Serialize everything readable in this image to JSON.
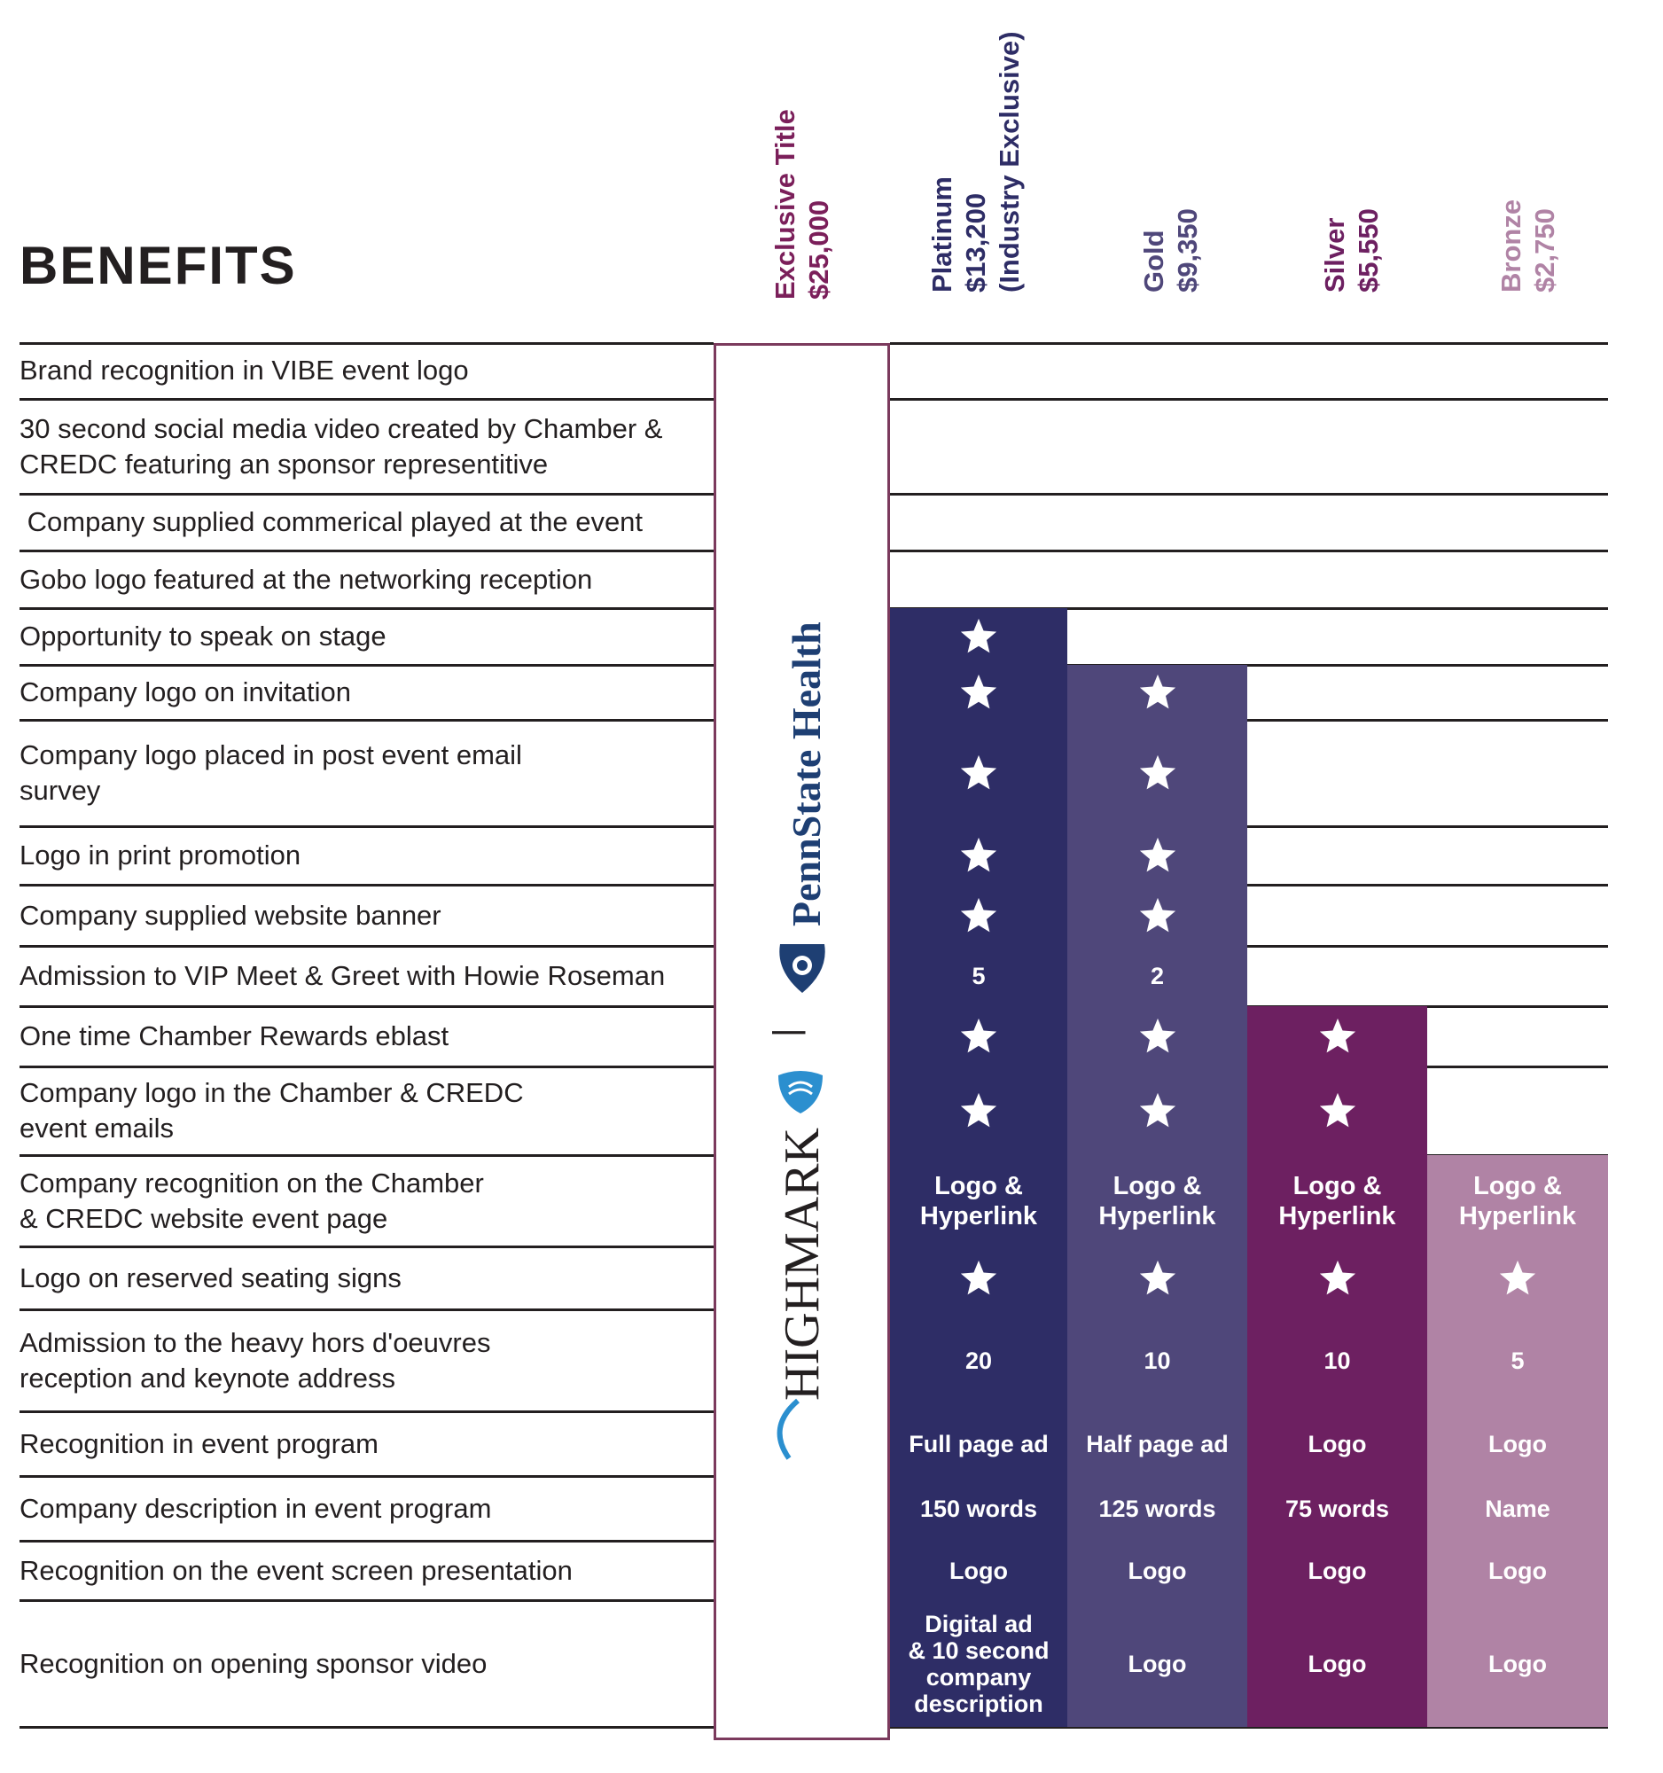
{
  "title": "BENEFITS",
  "tiers": [
    {
      "line1": "Exclusive Title",
      "line2": "$25,000",
      "line3": "",
      "color": "#7b1f5a"
    },
    {
      "line1": "Platinum",
      "line2": "$13,200",
      "line3": "(Industry Exclusive)",
      "color": "#2e2d66"
    },
    {
      "line1": "Gold",
      "line2": "$9,350",
      "line3": "",
      "color": "#4f477a"
    },
    {
      "line1": "Silver",
      "line2": "$5,550",
      "line3": "",
      "color": "#6d2061"
    },
    {
      "line1": "Bronze",
      "line2": "$2,750",
      "line3": "",
      "color": "#b083a5"
    }
  ],
  "benefits": [
    {
      "label": [
        "Brand recognition in VIBE event logo"
      ]
    },
    {
      "label": [
        "30 second social media video created by Chamber &",
        "CREDC featuring an sponsor representitive"
      ]
    },
    {
      "label": [
        " Company supplied commerical played at the event"
      ]
    },
    {
      "label": [
        "Gobo logo featured at the networking reception"
      ]
    },
    {
      "label": [
        "Opportunity to speak on stage"
      ]
    },
    {
      "label": [
        "Company logo on invitation"
      ]
    },
    {
      "label": [
        "Company logo placed in post event email",
        "survey"
      ]
    },
    {
      "label": [
        "Logo in print promotion"
      ]
    },
    {
      "label": [
        "Company supplied website banner"
      ]
    },
    {
      "label": [
        "Admission to VIP Meet & Greet with Howie Roseman"
      ]
    },
    {
      "label": [
        "One time Chamber Rewards eblast"
      ]
    },
    {
      "label": [
        "Company logo in the Chamber & CREDC",
        "event emails"
      ]
    },
    {
      "label": [
        "Company recognition on the Chamber",
        "& CREDC website event page"
      ]
    },
    {
      "label": [
        "Logo on reserved seating signs"
      ]
    },
    {
      "label": [
        "Admission to the heavy hors d'oeuvres",
        "reception and keynote address"
      ]
    },
    {
      "label": [
        "Recognition in event program"
      ]
    },
    {
      "label": [
        "Company description in event program"
      ]
    },
    {
      "label": [
        "Recognition on the event screen presentation"
      ]
    },
    {
      "label": [
        "Recognition on opening sponsor video"
      ]
    }
  ],
  "cells": {
    "platinum": {
      "r4": "star",
      "r5": "star",
      "r6": "star",
      "r7": "star",
      "r8": "star",
      "r9": "5",
      "r10": "star",
      "r11": "star",
      "r12": [
        "Logo &",
        "Hyperlink"
      ],
      "r13": "star",
      "r14": "20",
      "r15": "Full page ad",
      "r16": "150 words",
      "r17": "Logo",
      "r18": [
        "Digital ad",
        "& 10 second",
        "company",
        "description"
      ]
    },
    "gold": {
      "r5": "star",
      "r6": "star",
      "r7": "star",
      "r8": "star",
      "r9": "2",
      "r10": "star",
      "r11": "star",
      "r12": [
        "Logo &",
        "Hyperlink"
      ],
      "r13": "star",
      "r14": "10",
      "r15": "Half page ad",
      "r16": "125 words",
      "r17": "Logo",
      "r18": "Logo"
    },
    "silver": {
      "r10": "star",
      "r11": "star",
      "r12": [
        "Logo &",
        "Hyperlink"
      ],
      "r13": "star",
      "r14": "10",
      "r15": "Logo",
      "r16": "75 words",
      "r17": "Logo",
      "r18": "Logo"
    },
    "bronze": {
      "r12": [
        "Logo &",
        "Hyperlink"
      ],
      "r13": "star",
      "r14": "5",
      "r15": "Logo",
      "r16": "Name",
      "r17": "Logo",
      "r18": "Logo"
    }
  },
  "exclusive_sponsors": {
    "sponsor1": "PennState Health",
    "sponsor2": "HIGHMARK",
    "divider": "|"
  },
  "icons": {
    "cell_mark": "star-icon"
  }
}
